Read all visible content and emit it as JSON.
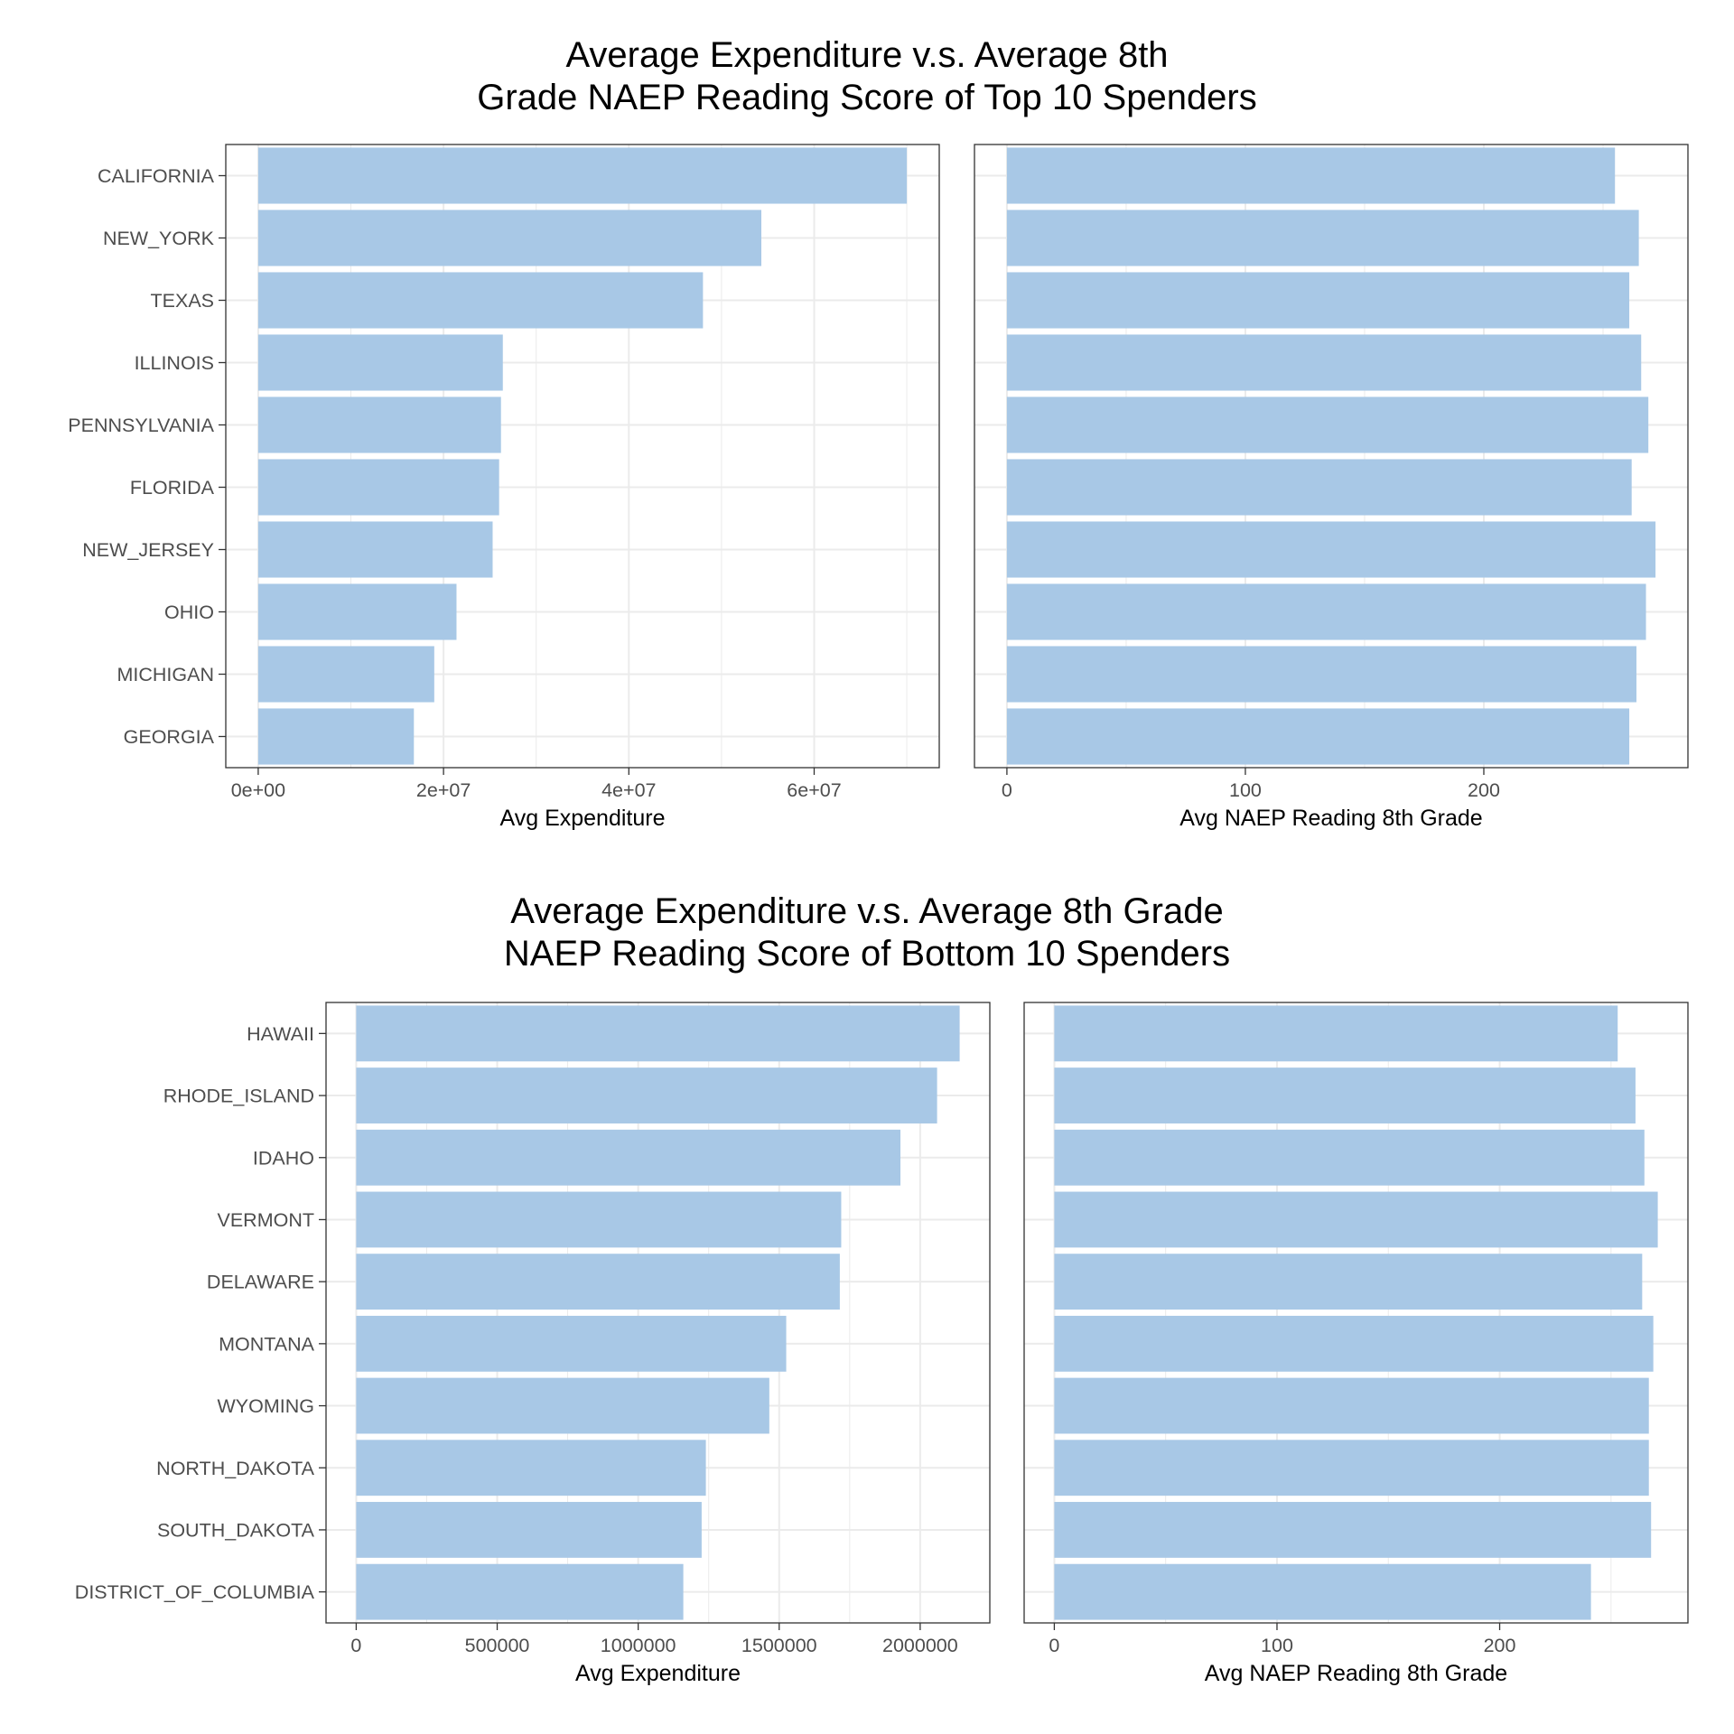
{
  "figures": [
    {
      "title_lines": [
        "Average Expenditure v.s. Average 8th",
        "Grade NAEP Reading Score of Top 10 Spenders"
      ]
    },
    {
      "title_lines": [
        "Average Expenditure v.s. Average 8th Grade",
        "NAEP Reading Score of Bottom 10 Spenders"
      ]
    }
  ],
  "colors": {
    "bar": "#a8c8e6",
    "grid": "#ebebeb",
    "panel_border": "#333333",
    "tick_text": "#4d4d4d"
  },
  "chart_data": [
    {
      "type": "bar",
      "orientation": "horizontal",
      "categories": [
        "CALIFORNIA",
        "NEW_YORK",
        "TEXAS",
        "ILLINOIS",
        "PENNSYLVANIA",
        "FLORIDA",
        "NEW_JERSEY",
        "OHIO",
        "MICHIGAN",
        "GEORGIA"
      ],
      "values": [
        70000000,
        54300000,
        48000000,
        26400000,
        26200000,
        26000000,
        25300000,
        21400000,
        19000000,
        16800000
      ],
      "xlabel": "Avg Expenditure",
      "xlim": [
        -3500000,
        73500000
      ],
      "xticks": [
        0,
        20000000,
        40000000,
        60000000
      ],
      "xtick_labels": [
        "0e+00",
        "2e+07",
        "4e+07",
        "6e+07"
      ],
      "grid": true
    },
    {
      "type": "bar",
      "orientation": "horizontal",
      "categories": [
        "CALIFORNIA",
        "NEW_YORK",
        "TEXAS",
        "ILLINOIS",
        "PENNSYLVANIA",
        "FLORIDA",
        "NEW_JERSEY",
        "OHIO",
        "MICHIGAN",
        "GEORGIA"
      ],
      "values": [
        255,
        265,
        261,
        266,
        269,
        262,
        272,
        268,
        264,
        261
      ],
      "xlabel": "Avg NAEP Reading 8th Grade",
      "xlim": [
        -13.6,
        285.6
      ],
      "xticks": [
        0,
        100,
        200
      ],
      "xtick_labels": [
        "0",
        "100",
        "200"
      ],
      "grid": true
    },
    {
      "type": "bar",
      "orientation": "horizontal",
      "categories": [
        "HAWAII",
        "RHODE_ISLAND",
        "IDAHO",
        "VERMONT",
        "DELAWARE",
        "MONTANA",
        "WYOMING",
        "NORTH_DAKOTA",
        "SOUTH_DAKOTA",
        "DISTRICT_OF_COLUMBIA"
      ],
      "values": [
        2140000,
        2060000,
        1930000,
        1720000,
        1715000,
        1525000,
        1465000,
        1240000,
        1225000,
        1160000
      ],
      "xlabel": "Avg Expenditure",
      "xlim": [
        -107000,
        2247000
      ],
      "xticks": [
        0,
        500000,
        1000000,
        1500000,
        2000000
      ],
      "xtick_labels": [
        "0",
        "500000",
        "1000000",
        "1500000",
        "2000000"
      ],
      "grid": true
    },
    {
      "type": "bar",
      "orientation": "horizontal",
      "categories": [
        "HAWAII",
        "RHODE_ISLAND",
        "IDAHO",
        "VERMONT",
        "DELAWARE",
        "MONTANA",
        "WYOMING",
        "NORTH_DAKOTA",
        "SOUTH_DAKOTA",
        "DISTRICT_OF_COLUMBIA"
      ],
      "values": [
        253,
        261,
        265,
        271,
        264,
        269,
        267,
        267,
        268,
        241
      ],
      "xlabel": "Avg NAEP Reading 8th Grade",
      "xlim": [
        -13.55,
        284.55
      ],
      "xticks": [
        0,
        100,
        200
      ],
      "xtick_labels": [
        "0",
        "100",
        "200"
      ],
      "grid": true
    }
  ]
}
